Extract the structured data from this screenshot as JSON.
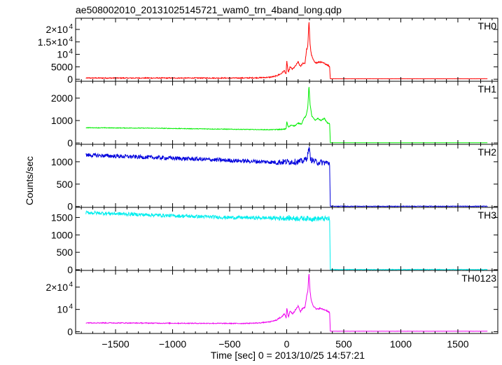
{
  "chart_data": {
    "type": "line",
    "title": "ae508002010_20131025145721_wam0_trn_4band_long.qdp",
    "xlabel": "Time [sec] 0 = 2013/10/25 14:57:21",
    "ylabel": "Counts/sec",
    "xlim": [
      -1850,
      1850
    ],
    "x_ticks": [
      {
        "value": -1500,
        "label": "−1500"
      },
      {
        "value": -1000,
        "label": "−1000"
      },
      {
        "value": -500,
        "label": "−500"
      },
      {
        "value": 0,
        "label": "0"
      },
      {
        "value": 500,
        "label": "500"
      },
      {
        "value": 1000,
        "label": "1000"
      },
      {
        "value": 1500,
        "label": "1500"
      }
    ],
    "grid": false,
    "legend": "none",
    "series": [
      {
        "name": "TH0",
        "color": "#ff0000",
        "ylim": [
          -800,
          24500
        ],
        "y_ticks": [
          {
            "value": 0,
            "label": "0"
          },
          {
            "value": 5000,
            "label": "5000"
          },
          {
            "value": 10000,
            "label": "10",
            "sup": "4"
          },
          {
            "value": 15000,
            "label": "1.5×10",
            "sup": "4"
          },
          {
            "value": 20000,
            "label": "2×10",
            "sup": "4"
          }
        ],
        "noise": 200,
        "points": [
          [
            -1760,
            500
          ],
          [
            -800,
            500
          ],
          [
            -400,
            500
          ],
          [
            -250,
            600
          ],
          [
            -150,
            800
          ],
          [
            -100,
            1200
          ],
          [
            -50,
            2200
          ],
          [
            -20,
            3500
          ],
          [
            -5,
            2000
          ],
          [
            0,
            7500
          ],
          [
            15,
            2500
          ],
          [
            30,
            5000
          ],
          [
            50,
            4000
          ],
          [
            80,
            5500
          ],
          [
            100,
            7000
          ],
          [
            120,
            5000
          ],
          [
            140,
            6500
          ],
          [
            160,
            6500
          ],
          [
            175,
            12000
          ],
          [
            185,
            13000
          ],
          [
            195,
            24000
          ],
          [
            205,
            14000
          ],
          [
            215,
            10000
          ],
          [
            235,
            7500
          ],
          [
            260,
            6500
          ],
          [
            290,
            7000
          ],
          [
            320,
            6500
          ],
          [
            350,
            6000
          ],
          [
            365,
            5500
          ],
          [
            378,
            5000
          ],
          [
            380,
            200
          ],
          [
            1760,
            200
          ]
        ]
      },
      {
        "name": "TH1",
        "color": "#00ee00",
        "ylim": [
          -60,
          2750
        ],
        "y_ticks": [
          {
            "value": 0,
            "label": "0"
          },
          {
            "value": 1000,
            "label": "1000"
          },
          {
            "value": 2000,
            "label": "2000"
          }
        ],
        "noise": 14,
        "points": [
          [
            -1760,
            680
          ],
          [
            -1200,
            660
          ],
          [
            -600,
            620
          ],
          [
            -150,
            590
          ],
          [
            -20,
            610
          ],
          [
            -5,
            650
          ],
          [
            0,
            950
          ],
          [
            15,
            700
          ],
          [
            40,
            800
          ],
          [
            70,
            760
          ],
          [
            100,
            880
          ],
          [
            130,
            850
          ],
          [
            150,
            1100
          ],
          [
            170,
            1200
          ],
          [
            185,
            1600
          ],
          [
            195,
            2600
          ],
          [
            205,
            1700
          ],
          [
            220,
            1200
          ],
          [
            250,
            1000
          ],
          [
            270,
            1100
          ],
          [
            300,
            1000
          ],
          [
            330,
            1100
          ],
          [
            355,
            900
          ],
          [
            378,
            850
          ],
          [
            380,
            10
          ],
          [
            1760,
            10
          ]
        ]
      },
      {
        "name": "TH2",
        "color": "#0000dd",
        "ylim": [
          -20,
          1390
        ],
        "y_ticks": [
          {
            "value": 0,
            "label": "0"
          },
          {
            "value": 500,
            "label": "500"
          },
          {
            "value": 1000,
            "label": "1000"
          }
        ],
        "noise": 45,
        "points": [
          [
            -1760,
            1150
          ],
          [
            -1000,
            1080
          ],
          [
            -500,
            1030
          ],
          [
            -100,
            990
          ],
          [
            0,
            1000
          ],
          [
            100,
            1000
          ],
          [
            150,
            1020
          ],
          [
            180,
            1100
          ],
          [
            195,
            1320
          ],
          [
            210,
            1050
          ],
          [
            260,
            990
          ],
          [
            330,
            980
          ],
          [
            378,
            970
          ],
          [
            380,
            5
          ],
          [
            1760,
            5
          ]
        ]
      },
      {
        "name": "TH3",
        "color": "#00eeee",
        "ylim": [
          -20,
          1790
        ],
        "y_ticks": [
          {
            "value": 0,
            "label": "0"
          },
          {
            "value": 500,
            "label": "500"
          },
          {
            "value": 1000,
            "label": "1000"
          },
          {
            "value": 1500,
            "label": "1500"
          }
        ],
        "noise": 50,
        "points": [
          [
            -1760,
            1640
          ],
          [
            -1000,
            1550
          ],
          [
            -500,
            1500
          ],
          [
            0,
            1480
          ],
          [
            200,
            1470
          ],
          [
            378,
            1460
          ],
          [
            380,
            5
          ],
          [
            1760,
            5
          ]
        ]
      },
      {
        "name": "TH0123",
        "color": "#ee00ee",
        "ylim": [
          -800,
          27500
        ],
        "y_ticks": [
          {
            "value": 0,
            "label": "0"
          },
          {
            "value": 10000,
            "label": "10",
            "sup": "4"
          },
          {
            "value": 20000,
            "label": "2×10",
            "sup": "4"
          }
        ],
        "noise": 200,
        "points": [
          [
            -1760,
            4000
          ],
          [
            -1000,
            3800
          ],
          [
            -400,
            3700
          ],
          [
            -250,
            3900
          ],
          [
            -150,
            4400
          ],
          [
            -100,
            5000
          ],
          [
            -50,
            6500
          ],
          [
            -20,
            8000
          ],
          [
            -5,
            6000
          ],
          [
            0,
            11000
          ],
          [
            15,
            6500
          ],
          [
            30,
            9500
          ],
          [
            50,
            8000
          ],
          [
            80,
            10000
          ],
          [
            100,
            11500
          ],
          [
            120,
            9000
          ],
          [
            140,
            10500
          ],
          [
            160,
            11000
          ],
          [
            175,
            16000
          ],
          [
            185,
            18000
          ],
          [
            195,
            27000
          ],
          [
            205,
            18000
          ],
          [
            215,
            14000
          ],
          [
            235,
            11500
          ],
          [
            260,
            10000
          ],
          [
            290,
            10500
          ],
          [
            320,
            10000
          ],
          [
            350,
            9500
          ],
          [
            365,
            9000
          ],
          [
            378,
            8500
          ],
          [
            380,
            200
          ],
          [
            1760,
            200
          ]
        ]
      }
    ]
  }
}
